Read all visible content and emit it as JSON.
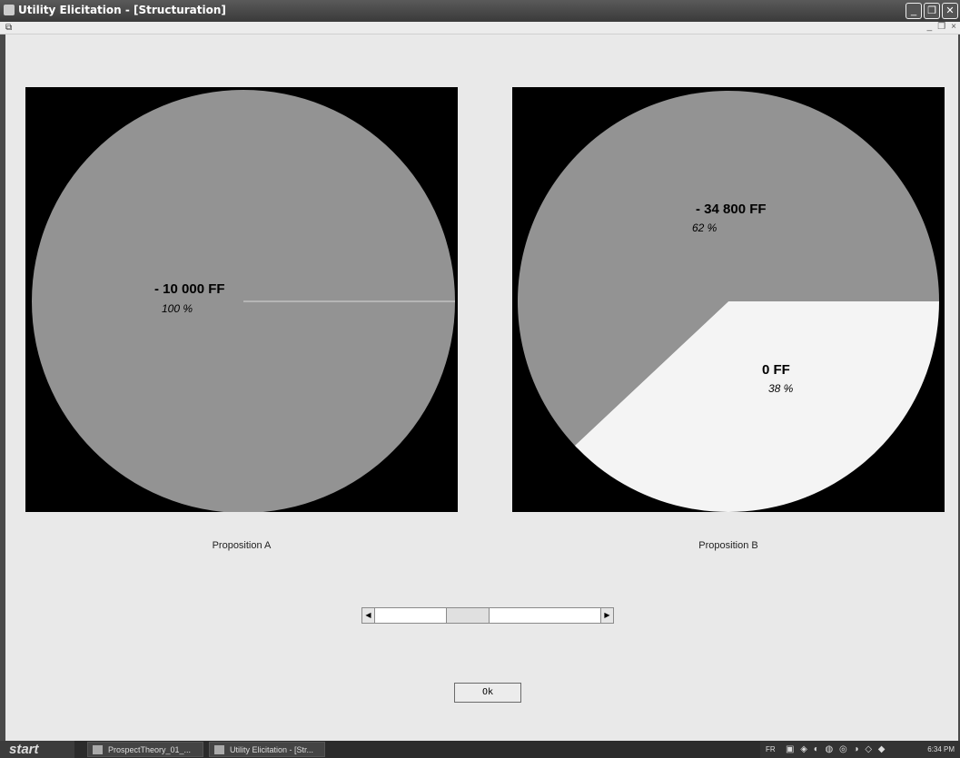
{
  "window": {
    "title": "Utility Elicitation - [Structuration]"
  },
  "title_buttons": [
    "_",
    "❐",
    "✕"
  ],
  "mdi_buttons": [
    "_",
    "❐",
    "×"
  ],
  "chart_data": [
    {
      "type": "pie",
      "title": "Proposition A",
      "slices": [
        {
          "label": "- 10 000  FF",
          "percent_label": "100 %",
          "value": 100,
          "color": "#939393"
        }
      ]
    },
    {
      "type": "pie",
      "title": "Proposition B",
      "slices": [
        {
          "label": "- 34 800  FF",
          "percent_label": "62 %",
          "value": 62,
          "color": "#939393"
        },
        {
          "label": "0  FF",
          "percent_label": "38 %",
          "value": 38,
          "color": "#f4f4f4"
        }
      ]
    }
  ],
  "slider": {
    "value_fraction": 0.39
  },
  "ok_button": {
    "label": "Ok"
  },
  "taskbar": {
    "start_label": "start",
    "items": [
      "ProspectTheory_01_...",
      "Utility Elicitation - [Str..."
    ],
    "lang": "FR",
    "clock": "6:34 PM"
  }
}
